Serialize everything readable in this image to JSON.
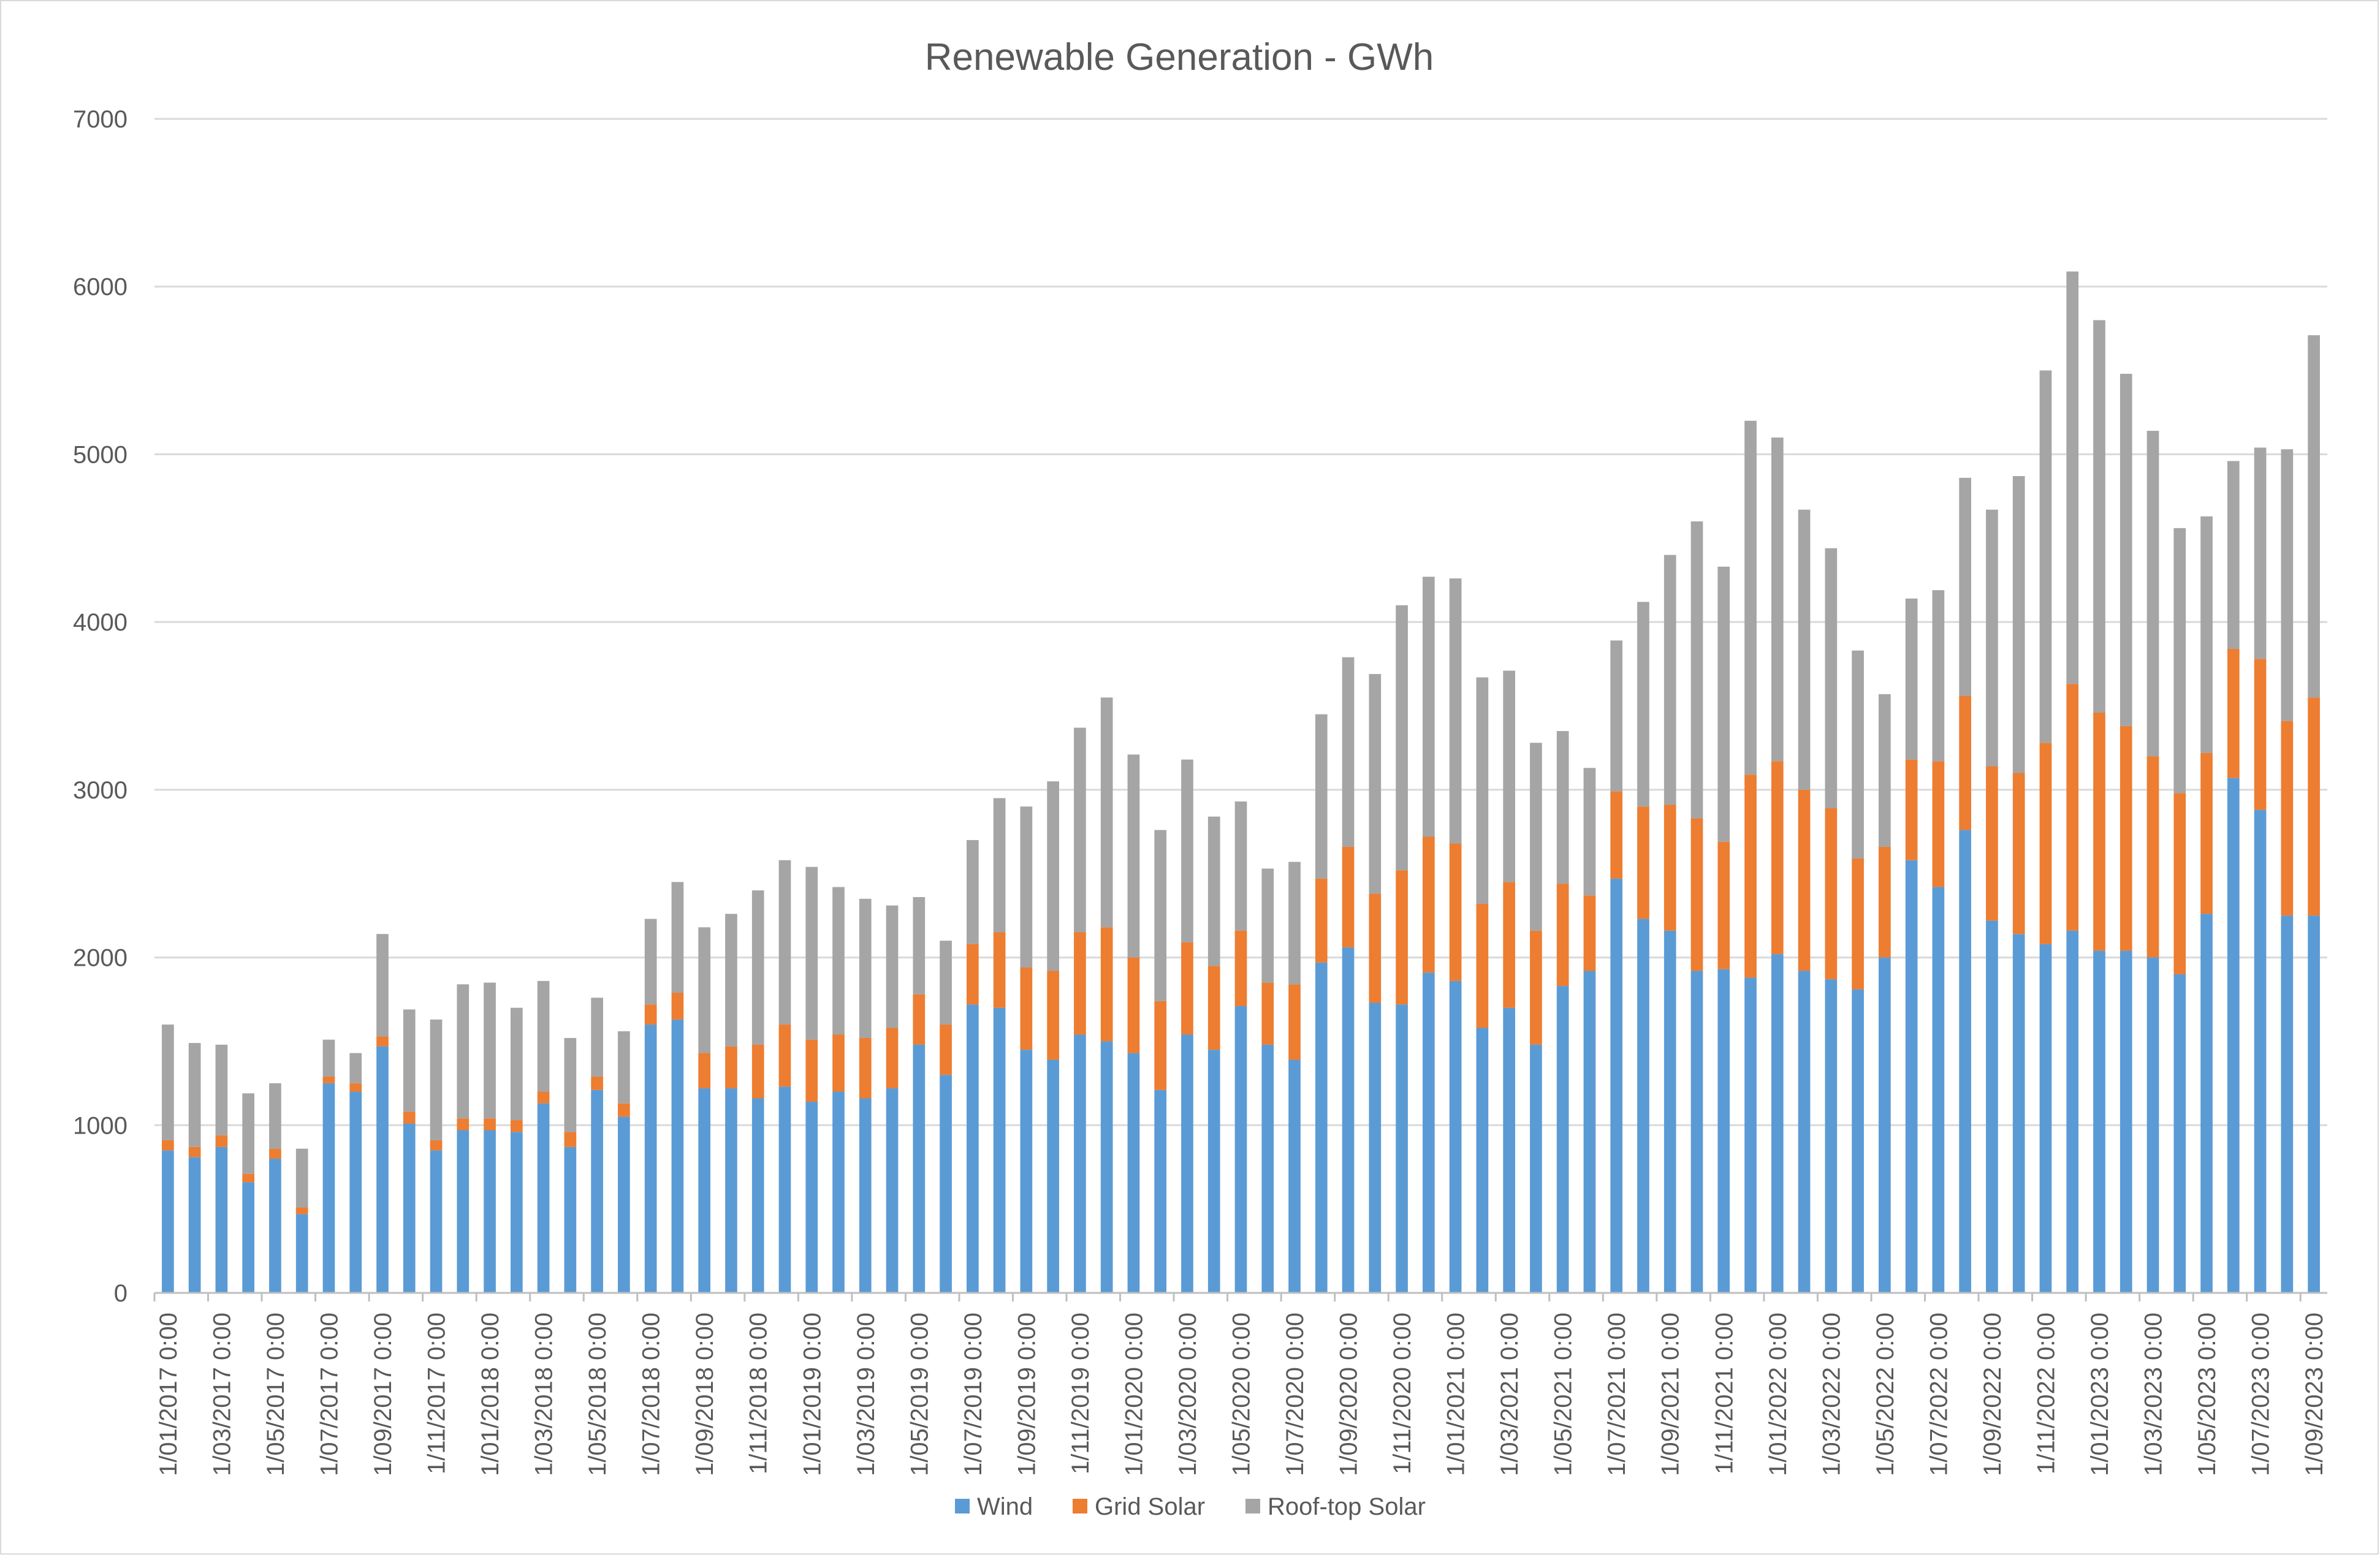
{
  "chart_data": {
    "type": "bar",
    "stacked": true,
    "title": "Renewable Generation - GWh",
    "xlabel": "",
    "ylabel": "",
    "ylim": [
      0,
      7000
    ],
    "yticks": [
      0,
      1000,
      2000,
      3000,
      4000,
      5000,
      6000,
      7000
    ],
    "grid": true,
    "legend_position": "bottom",
    "colors": {
      "Wind": "#5b9bd5",
      "Grid Solar": "#ed7d31",
      "Roof-top Solar": "#a5a5a5",
      "grid": "#d9d9d9",
      "axis": "#bfbfbf"
    },
    "categories": [
      "1/01/2017 0:00",
      "1/02/2017 0:00",
      "1/03/2017 0:00",
      "1/04/2017 0:00",
      "1/05/2017 0:00",
      "1/06/2017 0:00",
      "1/07/2017 0:00",
      "1/08/2017 0:00",
      "1/09/2017 0:00",
      "1/10/2017 0:00",
      "1/11/2017 0:00",
      "1/12/2017 0:00",
      "1/01/2018 0:00",
      "1/02/2018 0:00",
      "1/03/2018 0:00",
      "1/04/2018 0:00",
      "1/05/2018 0:00",
      "1/06/2018 0:00",
      "1/07/2018 0:00",
      "1/08/2018 0:00",
      "1/09/2018 0:00",
      "1/10/2018 0:00",
      "1/11/2018 0:00",
      "1/12/2018 0:00",
      "1/01/2019 0:00",
      "1/02/2019 0:00",
      "1/03/2019 0:00",
      "1/04/2019 0:00",
      "1/05/2019 0:00",
      "1/06/2019 0:00",
      "1/07/2019 0:00",
      "1/08/2019 0:00",
      "1/09/2019 0:00",
      "1/10/2019 0:00",
      "1/11/2019 0:00",
      "1/12/2019 0:00",
      "1/01/2020 0:00",
      "1/02/2020 0:00",
      "1/03/2020 0:00",
      "1/04/2020 0:00",
      "1/05/2020 0:00",
      "1/06/2020 0:00",
      "1/07/2020 0:00",
      "1/08/2020 0:00",
      "1/09/2020 0:00",
      "1/10/2020 0:00",
      "1/11/2020 0:00",
      "1/12/2020 0:00",
      "1/01/2021 0:00",
      "1/02/2021 0:00",
      "1/03/2021 0:00",
      "1/04/2021 0:00",
      "1/05/2021 0:00",
      "1/06/2021 0:00",
      "1/07/2021 0:00",
      "1/08/2021 0:00",
      "1/09/2021 0:00",
      "1/10/2021 0:00",
      "1/11/2021 0:00",
      "1/12/2021 0:00",
      "1/01/2022 0:00",
      "1/02/2022 0:00",
      "1/03/2022 0:00",
      "1/04/2022 0:00",
      "1/05/2022 0:00",
      "1/06/2022 0:00",
      "1/07/2022 0:00",
      "1/08/2022 0:00",
      "1/09/2022 0:00",
      "1/10/2022 0:00",
      "1/11/2022 0:00",
      "1/12/2022 0:00",
      "1/01/2023 0:00",
      "1/02/2023 0:00",
      "1/03/2023 0:00",
      "1/04/2023 0:00",
      "1/05/2023 0:00",
      "1/06/2023 0:00",
      "1/07/2023 0:00",
      "1/08/2023 0:00",
      "1/09/2023 0:00"
    ],
    "tick_label_every": 2,
    "series": [
      {
        "name": "Wind",
        "values": [
          850,
          810,
          870,
          660,
          800,
          470,
          1250,
          1200,
          1470,
          1010,
          850,
          970,
          970,
          960,
          1130,
          870,
          1210,
          1050,
          1600,
          1630,
          1220,
          1220,
          1160,
          1230,
          1140,
          1200,
          1160,
          1220,
          1480,
          1300,
          1720,
          1700,
          1450,
          1390,
          1540,
          1500,
          1430,
          1210,
          1540,
          1450,
          1710,
          1480,
          1390,
          1970,
          2060,
          1730,
          1720,
          1910,
          1860,
          1580,
          1700,
          1480,
          1830,
          1920,
          2470,
          2230,
          2160,
          1920,
          1930,
          1880,
          2020,
          1920,
          1870,
          1810,
          2000,
          2580,
          2420,
          2760,
          2220,
          2140,
          2080,
          2160,
          2040,
          2040,
          2000,
          1900,
          2260,
          3070,
          2880,
          2250,
          2250
        ]
      },
      {
        "name": "Grid Solar",
        "values": [
          60,
          60,
          70,
          50,
          60,
          40,
          40,
          50,
          60,
          70,
          60,
          70,
          70,
          70,
          70,
          90,
          80,
          80,
          120,
          160,
          210,
          250,
          320,
          370,
          370,
          340,
          360,
          360,
          300,
          300,
          360,
          450,
          490,
          530,
          610,
          680,
          570,
          530,
          550,
          500,
          450,
          370,
          450,
          500,
          600,
          650,
          800,
          810,
          820,
          740,
          750,
          680,
          610,
          450,
          520,
          670,
          750,
          910,
          760,
          1210,
          1150,
          1080,
          1020,
          780,
          660,
          600,
          750,
          800,
          920,
          960,
          1200,
          1470,
          1420,
          1340,
          1200,
          1080,
          960,
          770,
          900,
          1160,
          1300
        ]
      },
      {
        "name": "Roof-top Solar",
        "values": [
          690,
          620,
          540,
          480,
          390,
          350,
          220,
          180,
          610,
          610,
          720,
          800,
          810,
          670,
          660,
          560,
          470,
          430,
          510,
          660,
          750,
          790,
          920,
          980,
          1030,
          880,
          830,
          730,
          580,
          500,
          620,
          800,
          960,
          1130,
          1220,
          1370,
          1210,
          1020,
          1090,
          890,
          770,
          680,
          730,
          980,
          1130,
          1310,
          1580,
          1550,
          1580,
          1350,
          1260,
          1120,
          910,
          760,
          900,
          1220,
          1490,
          1770,
          1640,
          2110,
          1930,
          1670,
          1550,
          1240,
          910,
          960,
          1020,
          1300,
          1530,
          1770,
          2220,
          2460,
          2340,
          2100,
          1940,
          1580,
          1410,
          1120,
          1260,
          1620,
          2160
        ]
      }
    ],
    "legend": [
      "Wind",
      "Grid Solar",
      "Roof-top Solar"
    ]
  }
}
